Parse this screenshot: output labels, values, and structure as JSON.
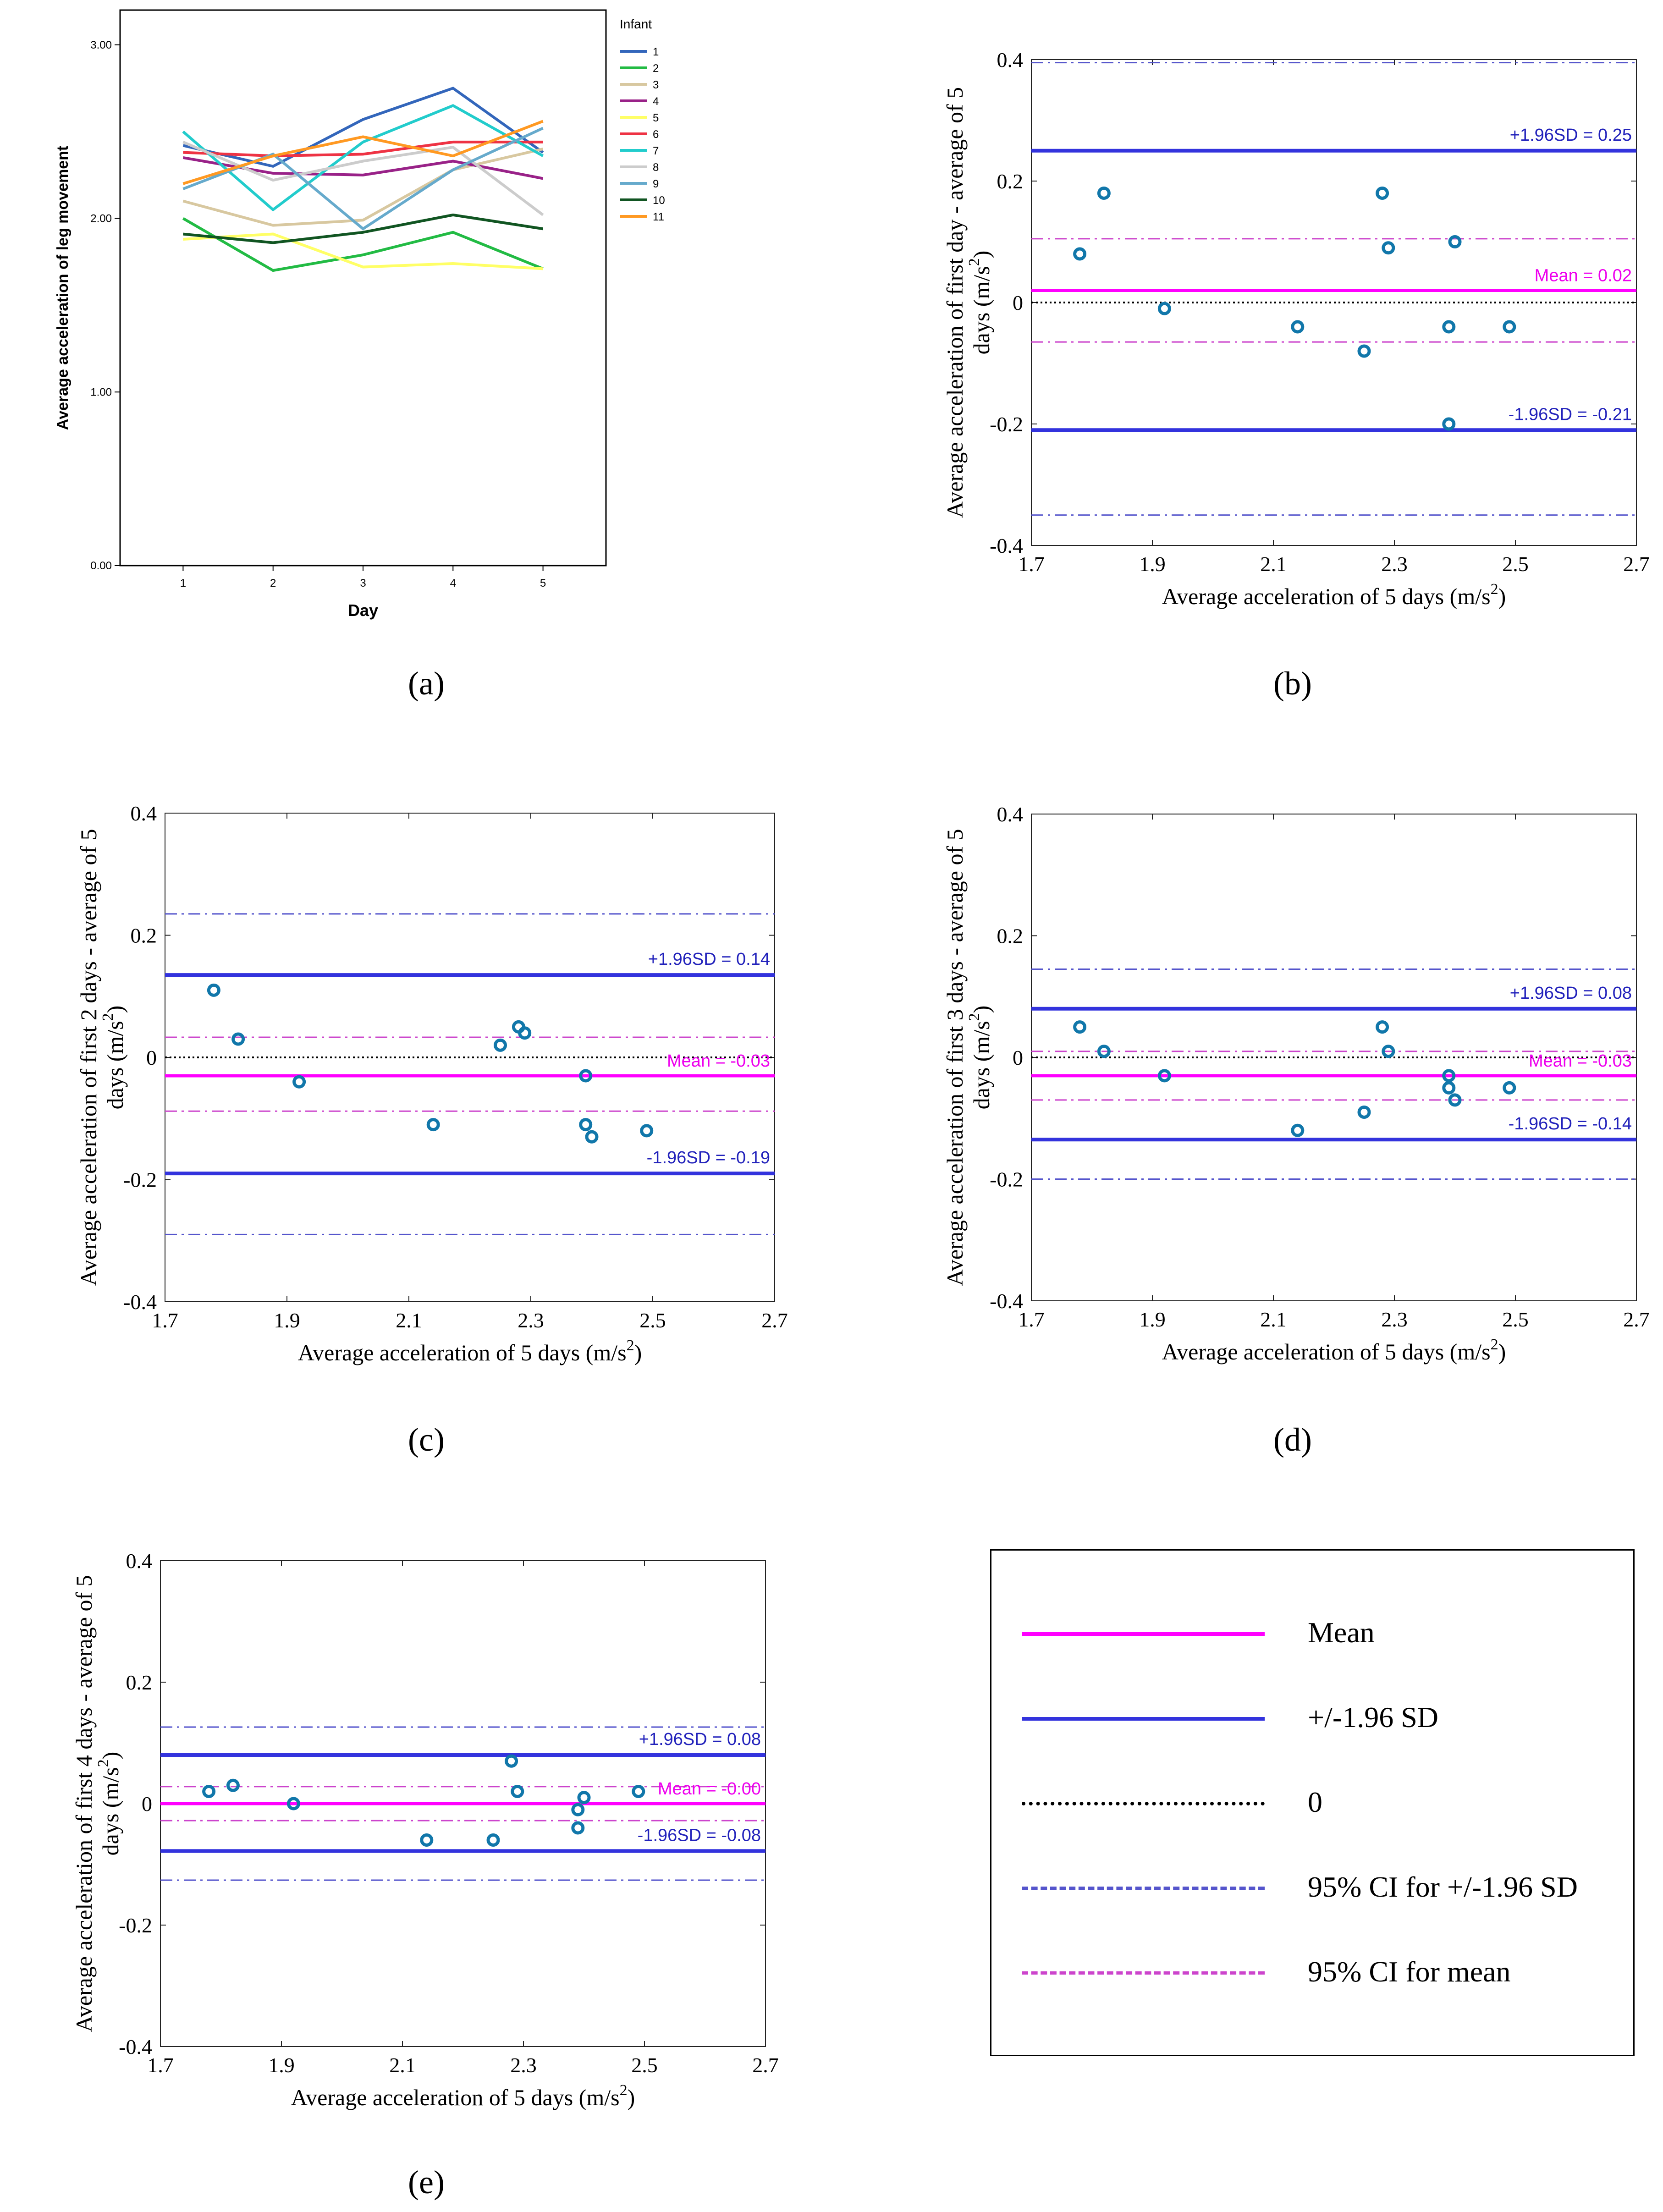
{
  "captions": {
    "a": "(a)",
    "b": "(b)",
    "c": "(c)",
    "d": "(d)",
    "e": "(e)"
  },
  "colors": {
    "mean": "#ff00ff",
    "sd": "#3333dd",
    "zero": "#000000",
    "ci_sd": "#5555cc",
    "ci_mean": "#cc44cc",
    "points": "#1177aa",
    "sd_label": "#2222bb",
    "mean_label": "#ee00ee"
  },
  "legend": {
    "items": [
      {
        "key": "mean",
        "label": "Mean"
      },
      {
        "key": "sd",
        "label": "+/-1.96 SD"
      },
      {
        "key": "zero",
        "label": "0"
      },
      {
        "key": "ci_sd",
        "label": "95% CI for +/-1.96 SD"
      },
      {
        "key": "ci_mean",
        "label": "95% CI for mean"
      }
    ]
  },
  "chart_data": [
    {
      "id": "a",
      "type": "line",
      "title": "",
      "xlabel": "Day",
      "ylabel": "Average acceleration of leg movement",
      "x": [
        1,
        2,
        3,
        4,
        5
      ],
      "xlim": [
        0.3,
        5.7
      ],
      "ylim": [
        0,
        3.2
      ],
      "yticks": [
        0,
        1,
        2,
        3
      ],
      "ytick_labels": [
        "0.00",
        "1.00",
        "2.00",
        "3.00"
      ],
      "xticks": [
        1,
        2,
        3,
        4,
        5
      ],
      "xtick_labels": [
        "1",
        "2",
        "3",
        "4",
        "5"
      ],
      "legend_title": "Infant",
      "legend_position": "right",
      "series": [
        {
          "name": "1",
          "color": "#3366bb",
          "values": [
            2.42,
            2.3,
            2.57,
            2.75,
            2.38
          ]
        },
        {
          "name": "2",
          "color": "#22bb44",
          "values": [
            2.0,
            1.7,
            1.79,
            1.92,
            1.71
          ]
        },
        {
          "name": "3",
          "color": "#d8c8a0",
          "values": [
            2.1,
            1.96,
            1.99,
            2.28,
            2.4
          ]
        },
        {
          "name": "4",
          "color": "#992288",
          "values": [
            2.35,
            2.26,
            2.25,
            2.33,
            2.23
          ]
        },
        {
          "name": "5",
          "color": "#ffff66",
          "values": [
            1.88,
            1.91,
            1.72,
            1.74,
            1.71
          ]
        },
        {
          "name": "6",
          "color": "#ee3344",
          "values": [
            2.38,
            2.36,
            2.37,
            2.44,
            2.44
          ]
        },
        {
          "name": "7",
          "color": "#22cccc",
          "values": [
            2.5,
            2.05,
            2.44,
            2.65,
            2.36
          ]
        },
        {
          "name": "8",
          "color": "#cccccc",
          "values": [
            2.44,
            2.22,
            2.33,
            2.41,
            2.02
          ]
        },
        {
          "name": "9",
          "color": "#66aacc",
          "values": [
            2.17,
            2.37,
            1.94,
            2.28,
            2.52
          ]
        },
        {
          "name": "10",
          "color": "#115522",
          "values": [
            1.91,
            1.86,
            1.92,
            2.02,
            1.94
          ]
        },
        {
          "name": "11",
          "color": "#ff9922",
          "values": [
            2.2,
            2.36,
            2.47,
            2.36,
            2.56
          ]
        }
      ]
    },
    {
      "id": "b",
      "type": "scatter",
      "xlabel": "Average acceleration of 5 days (m/s",
      "xlabel_sup": "2",
      "xlabel_end": ")",
      "ylabel_line1": "Average acceleration of first day - average of 5",
      "ylabel_line2": "days (m/s",
      "ylabel_sup": "2",
      "ylabel_end": ")",
      "xlim": [
        1.7,
        2.7
      ],
      "ylim": [
        -0.4,
        0.4
      ],
      "xticks": [
        1.7,
        1.9,
        2.1,
        2.3,
        2.5,
        2.7
      ],
      "xtick_labels": [
        "1.7",
        "1.9",
        "2.1",
        "2.3",
        "2.5",
        "2.7"
      ],
      "yticks": [
        -0.4,
        -0.2,
        0,
        0.2,
        0.4
      ],
      "ytick_labels": [
        "-0.4",
        "-0.2",
        "0",
        "0.2",
        "0.4"
      ],
      "points": [
        {
          "x": 1.78,
          "y": 0.08
        },
        {
          "x": 1.82,
          "y": 0.18
        },
        {
          "x": 1.92,
          "y": -0.01
        },
        {
          "x": 2.14,
          "y": -0.04
        },
        {
          "x": 2.25,
          "y": -0.08
        },
        {
          "x": 2.28,
          "y": 0.18
        },
        {
          "x": 2.29,
          "y": 0.09
        },
        {
          "x": 2.39,
          "y": -0.04
        },
        {
          "x": 2.39,
          "y": -0.2
        },
        {
          "x": 2.4,
          "y": 0.1
        },
        {
          "x": 2.49,
          "y": -0.04
        }
      ],
      "mean": 0.02,
      "upper_sd": 0.25,
      "lower_sd": -0.21,
      "ci_mean": [
        -0.065,
        0.105
      ],
      "ci_upper_sd": [
        0.105,
        0.395
      ],
      "ci_lower_sd": [
        -0.065,
        -0.35
      ],
      "upper_label": "+1.96SD = 0.25",
      "lower_label": "-1.96SD = -0.21",
      "mean_label": "Mean = 0.02"
    },
    {
      "id": "c",
      "type": "scatter",
      "xlabel": "Average acceleration of 5 days (m/s",
      "xlabel_sup": "2",
      "xlabel_end": ")",
      "ylabel_line1": "Average acceleration of first 2 days - average of 5",
      "ylabel_line2": "days (m/s",
      "ylabel_sup": "2",
      "ylabel_end": ")",
      "xlim": [
        1.7,
        2.7
      ],
      "ylim": [
        -0.4,
        0.4
      ],
      "xticks": [
        1.7,
        1.9,
        2.1,
        2.3,
        2.5,
        2.7
      ],
      "xtick_labels": [
        "1.7",
        "1.9",
        "2.1",
        "2.3",
        "2.5",
        "2.7"
      ],
      "yticks": [
        -0.4,
        -0.2,
        0,
        0.2,
        0.4
      ],
      "ytick_labels": [
        "-0.4",
        "-0.2",
        "0",
        "0.2",
        "0.4"
      ],
      "points": [
        {
          "x": 1.78,
          "y": 0.11
        },
        {
          "x": 1.82,
          "y": 0.03
        },
        {
          "x": 1.92,
          "y": -0.04
        },
        {
          "x": 2.14,
          "y": -0.11
        },
        {
          "x": 2.25,
          "y": 0.02
        },
        {
          "x": 2.28,
          "y": 0.05
        },
        {
          "x": 2.29,
          "y": 0.04
        },
        {
          "x": 2.39,
          "y": -0.03
        },
        {
          "x": 2.39,
          "y": -0.11
        },
        {
          "x": 2.4,
          "y": -0.13
        },
        {
          "x": 2.49,
          "y": -0.12
        }
      ],
      "mean": -0.03,
      "upper_sd": 0.135,
      "lower_sd": -0.19,
      "ci_mean": [
        -0.088,
        0.033
      ],
      "ci_upper_sd": [
        0.033,
        0.235
      ],
      "ci_lower_sd": [
        -0.088,
        -0.29
      ],
      "upper_label": "+1.96SD = 0.14",
      "lower_label": "-1.96SD = -0.19",
      "mean_label": "Mean = -0.03"
    },
    {
      "id": "d",
      "type": "scatter",
      "xlabel": "Average acceleration of 5 days (m/s",
      "xlabel_sup": "2",
      "xlabel_end": ")",
      "ylabel_line1": "Average acceleration of first 3 days - average of 5",
      "ylabel_line2": "days (m/s",
      "ylabel_sup": "2",
      "ylabel_end": ")",
      "xlim": [
        1.7,
        2.7
      ],
      "ylim": [
        -0.4,
        0.4
      ],
      "xticks": [
        1.7,
        1.9,
        2.1,
        2.3,
        2.5,
        2.7
      ],
      "xtick_labels": [
        "1.7",
        "1.9",
        "2.1",
        "2.3",
        "2.5",
        "2.7"
      ],
      "yticks": [
        -0.4,
        -0.2,
        0,
        0.2,
        0.4
      ],
      "ytick_labels": [
        "-0.4",
        "-0.2",
        "0",
        "0.2",
        "0.4"
      ],
      "points": [
        {
          "x": 1.78,
          "y": 0.05
        },
        {
          "x": 1.82,
          "y": 0.01
        },
        {
          "x": 1.92,
          "y": -0.03
        },
        {
          "x": 2.14,
          "y": -0.12
        },
        {
          "x": 2.25,
          "y": -0.09
        },
        {
          "x": 2.28,
          "y": 0.05
        },
        {
          "x": 2.29,
          "y": 0.01
        },
        {
          "x": 2.39,
          "y": -0.03
        },
        {
          "x": 2.39,
          "y": -0.05
        },
        {
          "x": 2.4,
          "y": -0.07
        },
        {
          "x": 2.49,
          "y": -0.05
        }
      ],
      "mean": -0.03,
      "upper_sd": 0.08,
      "lower_sd": -0.135,
      "ci_mean": [
        -0.07,
        0.01
      ],
      "ci_upper_sd": [
        0.01,
        0.145
      ],
      "ci_lower_sd": [
        -0.07,
        -0.2
      ],
      "upper_label": "+1.96SD = 0.08",
      "lower_label": "-1.96SD = -0.14",
      "mean_label": "Mean = -0.03"
    },
    {
      "id": "e",
      "type": "scatter",
      "xlabel": "Average acceleration of 5 days (m/s",
      "xlabel_sup": "2",
      "xlabel_end": ")",
      "ylabel_line1": "Average acceleration of first 4 days - average of 5",
      "ylabel_line2": "days (m/s",
      "ylabel_sup": "2",
      "ylabel_end": ")",
      "xlim": [
        1.7,
        2.7
      ],
      "ylim": [
        -0.4,
        0.4
      ],
      "xticks": [
        1.7,
        1.9,
        2.1,
        2.3,
        2.5,
        2.7
      ],
      "xtick_labels": [
        "1.7",
        "1.9",
        "2.1",
        "2.3",
        "2.5",
        "2.7"
      ],
      "yticks": [
        -0.4,
        -0.2,
        0,
        0.2,
        0.4
      ],
      "ytick_labels": [
        "-0.4",
        "-0.2",
        "0",
        "0.2",
        "0.4"
      ],
      "points": [
        {
          "x": 1.78,
          "y": 0.02
        },
        {
          "x": 1.82,
          "y": 0.03
        },
        {
          "x": 1.92,
          "y": 0.0
        },
        {
          "x": 2.14,
          "y": -0.06
        },
        {
          "x": 2.25,
          "y": -0.06
        },
        {
          "x": 2.28,
          "y": 0.07
        },
        {
          "x": 2.29,
          "y": 0.02
        },
        {
          "x": 2.39,
          "y": -0.01
        },
        {
          "x": 2.39,
          "y": -0.04
        },
        {
          "x": 2.4,
          "y": 0.01
        },
        {
          "x": 2.49,
          "y": 0.02
        }
      ],
      "mean": 0.0,
      "upper_sd": 0.08,
      "lower_sd": -0.078,
      "ci_mean": [
        -0.028,
        0.028
      ],
      "ci_upper_sd": [
        0.028,
        0.126
      ],
      "ci_lower_sd": [
        -0.028,
        -0.126
      ],
      "upper_label": "+1.96SD = 0.08",
      "lower_label": "-1.96SD = -0.08",
      "mean_label": "Mean = -0.00"
    }
  ]
}
